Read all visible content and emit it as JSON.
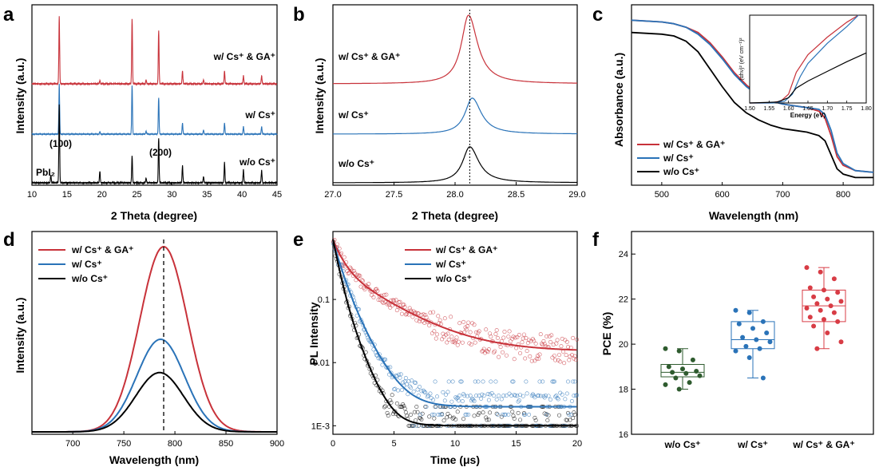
{
  "colors": {
    "red": "#c8323a",
    "blue": "#2a73b8",
    "black": "#000000",
    "green": "#2e5b2e",
    "box_red": "#d83c45"
  },
  "panels": {
    "a": {
      "letter": "a",
      "xlabel": "2 Theta (degree)",
      "ylabel": "Intensity (a.u.)"
    },
    "b": {
      "letter": "b",
      "xlabel": "2 Theta (degree)",
      "ylabel": "Intensity (a.u.)"
    },
    "c": {
      "letter": "c",
      "xlabel": "Wavelength (nm)",
      "ylabel": "Absorbance (a.u.)"
    },
    "d": {
      "letter": "d",
      "xlabel": "Wavelength (nm)",
      "ylabel": "Intensity (a.u.)"
    },
    "e": {
      "letter": "e",
      "xlabel": "Time (μs)",
      "ylabel": "PL Intensity"
    },
    "f": {
      "letter": "f",
      "xlabel": "",
      "ylabel": "PCE (%)"
    }
  },
  "chart_data": [
    {
      "panel": "a",
      "type": "line",
      "title": "",
      "xlabel": "2 Theta (degree)",
      "ylabel": "Intensity (a.u.)",
      "xlim": [
        10,
        45
      ],
      "xticks": [
        10,
        15,
        20,
        25,
        30,
        35,
        40,
        45
      ],
      "peaks_2theta": [
        12.7,
        13.9,
        19.7,
        24.3,
        26.3,
        28.1,
        31.5,
        34.5,
        37.5,
        40.2,
        42.8
      ],
      "series": [
        {
          "name": "w/ Cs⁺ & GA⁺",
          "color": "red",
          "peak_heights": [
            0.0,
            1.0,
            0.05,
            0.95,
            0.06,
            0.78,
            0.19,
            0.06,
            0.19,
            0.12,
            0.12
          ]
        },
        {
          "name": "w/ Cs⁺",
          "color": "blue",
          "peak_heights": [
            0.0,
            1.0,
            0.05,
            0.96,
            0.06,
            0.72,
            0.22,
            0.08,
            0.22,
            0.15,
            0.15
          ]
        },
        {
          "name": "w/o Cs⁺",
          "color": "black",
          "peak_heights": [
            0.1,
            1.0,
            0.15,
            0.34,
            0.06,
            0.57,
            0.22,
            0.08,
            0.26,
            0.17,
            0.16
          ]
        }
      ],
      "annotations": [
        "(100)",
        "(200)",
        "PbI₂"
      ]
    },
    {
      "panel": "b",
      "type": "line",
      "title": "",
      "xlabel": "2 Theta (degree)",
      "ylabel": "Intensity (a.u.)",
      "xlim": [
        27.0,
        29.0
      ],
      "xticks": [
        "27.0",
        "27.5",
        "28.0",
        "28.5",
        "29.0"
      ],
      "reference_line_x": 28.12,
      "series": [
        {
          "name": "w/ Cs⁺ & GA⁺",
          "color": "red",
          "peak_x": 28.11,
          "peak_height": 1.0
        },
        {
          "name": "w/ Cs⁺",
          "color": "blue",
          "peak_x": 28.14,
          "peak_height": 0.55
        },
        {
          "name": "w/o Cs⁺",
          "color": "black",
          "peak_x": 28.12,
          "peak_height": 0.55
        }
      ]
    },
    {
      "panel": "c",
      "type": "line",
      "title": "",
      "xlabel": "Wavelength (nm)",
      "ylabel": "Absorbance (a.u.)",
      "xlim": [
        450,
        850
      ],
      "xticks": [
        500,
        600,
        700,
        800
      ],
      "series": [
        {
          "name": "w/ Cs⁺ & GA⁺",
          "color": "red",
          "x": [
            450,
            500,
            520,
            540,
            560,
            580,
            600,
            620,
            640,
            660,
            680,
            700,
            720,
            740,
            760,
            770,
            780,
            790,
            800,
            820,
            850
          ],
          "y": [
            0.93,
            0.92,
            0.91,
            0.89,
            0.86,
            0.8,
            0.72,
            0.63,
            0.56,
            0.5,
            0.47,
            0.45,
            0.44,
            0.43,
            0.41,
            0.37,
            0.27,
            0.15,
            0.1,
            0.07,
            0.06
          ]
        },
        {
          "name": "w/ Cs⁺",
          "color": "blue",
          "x": [
            450,
            500,
            520,
            540,
            560,
            580,
            600,
            620,
            640,
            660,
            680,
            700,
            720,
            740,
            760,
            770,
            780,
            790,
            800,
            820,
            850
          ],
          "y": [
            0.93,
            0.92,
            0.91,
            0.89,
            0.85,
            0.79,
            0.71,
            0.62,
            0.55,
            0.5,
            0.47,
            0.45,
            0.44,
            0.43,
            0.42,
            0.39,
            0.3,
            0.17,
            0.11,
            0.07,
            0.06
          ]
        },
        {
          "name": "w/o Cs⁺",
          "color": "black",
          "x": [
            450,
            500,
            520,
            540,
            560,
            580,
            600,
            620,
            640,
            660,
            680,
            700,
            720,
            740,
            760,
            770,
            780,
            790,
            800,
            820,
            850
          ],
          "y": [
            0.86,
            0.85,
            0.84,
            0.81,
            0.75,
            0.65,
            0.55,
            0.46,
            0.4,
            0.36,
            0.33,
            0.31,
            0.3,
            0.29,
            0.27,
            0.24,
            0.16,
            0.08,
            0.05,
            0.03,
            0.03
          ]
        }
      ],
      "inset": {
        "xlabel": "Energy (eV)",
        "ylabel": "(αhν)² (eV cm⁻¹)²",
        "xlim": [
          1.5,
          1.8
        ],
        "xticks": [
          "1.50",
          "1.55",
          "1.60",
          "1.65",
          "1.70",
          "1.75",
          "1.80"
        ],
        "series": [
          {
            "name": "w/ Cs⁺ & GA⁺",
            "color": "red",
            "x": [
              1.5,
              1.55,
              1.58,
              1.6,
              1.62,
              1.65,
              1.7,
              1.75,
              1.78
            ],
            "y": [
              0.0,
              0.0,
              0.02,
              0.1,
              0.35,
              0.55,
              0.75,
              0.92,
              1.0
            ]
          },
          {
            "name": "w/ Cs⁺",
            "color": "blue",
            "x": [
              1.5,
              1.56,
              1.59,
              1.61,
              1.63,
              1.65,
              1.7,
              1.75,
              1.78
            ],
            "y": [
              0.0,
              0.0,
              0.02,
              0.1,
              0.3,
              0.45,
              0.68,
              0.87,
              1.0
            ]
          },
          {
            "name": "w/o Cs⁺",
            "color": "black",
            "x": [
              1.5,
              1.57,
              1.6,
              1.62,
              1.65,
              1.7,
              1.75,
              1.8
            ],
            "y": [
              0.0,
              0.01,
              0.06,
              0.17,
              0.25,
              0.36,
              0.47,
              0.57
            ]
          }
        ]
      }
    },
    {
      "panel": "d",
      "type": "line",
      "title": "",
      "xlabel": "Wavelength (nm)",
      "ylabel": "Intensity (a.u.)",
      "xlim": [
        660,
        900
      ],
      "xticks": [
        700,
        750,
        800,
        850,
        900
      ],
      "reference_line_x": 789,
      "series": [
        {
          "name": "w/ Cs⁺ & GA⁺",
          "color": "red",
          "peak_x": 789,
          "peak_height": 1.0,
          "fwhm_nm": 55
        },
        {
          "name": "w/ Cs⁺",
          "color": "blue",
          "peak_x": 786,
          "peak_height": 0.5,
          "fwhm_nm": 55
        },
        {
          "name": "w/o Cs⁺",
          "color": "black",
          "peak_x": 785,
          "peak_height": 0.32,
          "fwhm_nm": 55
        }
      ]
    },
    {
      "panel": "e",
      "type": "scatter",
      "title": "",
      "xlabel": "Time (μs)",
      "ylabel": "PL Intensity",
      "xlim": [
        0,
        20
      ],
      "xticks": [
        0,
        5,
        10,
        15,
        20
      ],
      "yscale": "log",
      "ylim": [
        0.0008,
        1
      ],
      "yticks": [
        "1E-3",
        "0.01",
        "0.1"
      ],
      "series": [
        {
          "name": "w/ Cs⁺ & GA⁺",
          "color": "red",
          "fit": {
            "a1": 0.55,
            "tau1": 0.7,
            "a2": 0.3,
            "tau2": 3.4,
            "offset": 0.015
          },
          "noise_floor": 0.015
        },
        {
          "name": "w/ Cs⁺",
          "color": "blue",
          "fit": {
            "a1": 0.6,
            "tau1": 0.55,
            "a2": 0.25,
            "tau2": 1.2,
            "offset": 0.002
          },
          "noise_floor": 0.002
        },
        {
          "name": "w/o Cs⁺",
          "color": "black",
          "fit": {
            "a1": 0.7,
            "tau1": 0.4,
            "a2": 0.2,
            "tau2": 0.9,
            "offset": 0.001
          },
          "noise_floor": 0.001
        }
      ]
    },
    {
      "panel": "f",
      "type": "box",
      "title": "",
      "xlabel": "",
      "ylabel": "PCE (%)",
      "ylim": [
        16,
        25
      ],
      "yticks": [
        16,
        18,
        20,
        22,
        24
      ],
      "categories": [
        "w/o Cs⁺",
        "w/ Cs⁺",
        "w/ Cs⁺ & GA⁺"
      ],
      "boxes": [
        {
          "category": "w/o Cs⁺",
          "color": "green",
          "min": 18.0,
          "q1": 18.55,
          "median": 18.75,
          "q3": 19.1,
          "max": 19.8,
          "points": [
            19.8,
            19.7,
            19.3,
            19.0,
            18.9,
            18.8,
            18.75,
            18.7,
            18.6,
            18.5,
            18.3,
            18.2,
            18.0
          ]
        },
        {
          "category": "w/ Cs⁺",
          "color": "blue",
          "min": 18.5,
          "q1": 19.8,
          "median": 20.2,
          "q3": 21.0,
          "max": 21.5,
          "points": [
            21.5,
            21.4,
            21.0,
            20.9,
            20.7,
            20.5,
            20.3,
            20.2,
            20.1,
            19.9,
            19.8,
            19.7,
            19.4,
            18.5
          ]
        },
        {
          "category": "w/ Cs⁺ & GA⁺",
          "color": "box_red",
          "min": 19.8,
          "q1": 21.0,
          "median": 21.7,
          "q3": 22.4,
          "max": 23.4,
          "points": [
            23.4,
            23.2,
            22.9,
            22.5,
            22.4,
            22.3,
            22.1,
            22.0,
            21.9,
            21.8,
            21.7,
            21.6,
            21.5,
            21.4,
            21.2,
            21.1,
            21.0,
            20.8,
            20.5,
            20.1,
            19.8
          ]
        }
      ]
    }
  ],
  "legend_labels": [
    "w/ Cs⁺ & GA⁺",
    "w/ Cs⁺",
    "w/o Cs⁺"
  ]
}
